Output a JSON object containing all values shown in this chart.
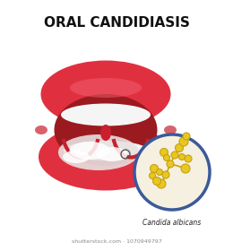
{
  "title": "ORAL CANDIDIASIS",
  "title_fontsize": 11,
  "candida_label": "Candida albicans",
  "watermark": "shutterstock.com · 1070949797",
  "bg_color": "#ffffff",
  "lip_outer_color": "#e03040",
  "lip_inner_color": "#c8202e",
  "lip_highlight": "#f06070",
  "mouth_interior_color": "#9b1a20",
  "tongue_color": "#f5f0f0",
  "teeth_color": "#f5f5f5",
  "circle_bg": "#f5f0e0",
  "circle_border": "#3a5a9a",
  "candida_yellow": "#e8c820",
  "candida_stem": "#c8a010"
}
